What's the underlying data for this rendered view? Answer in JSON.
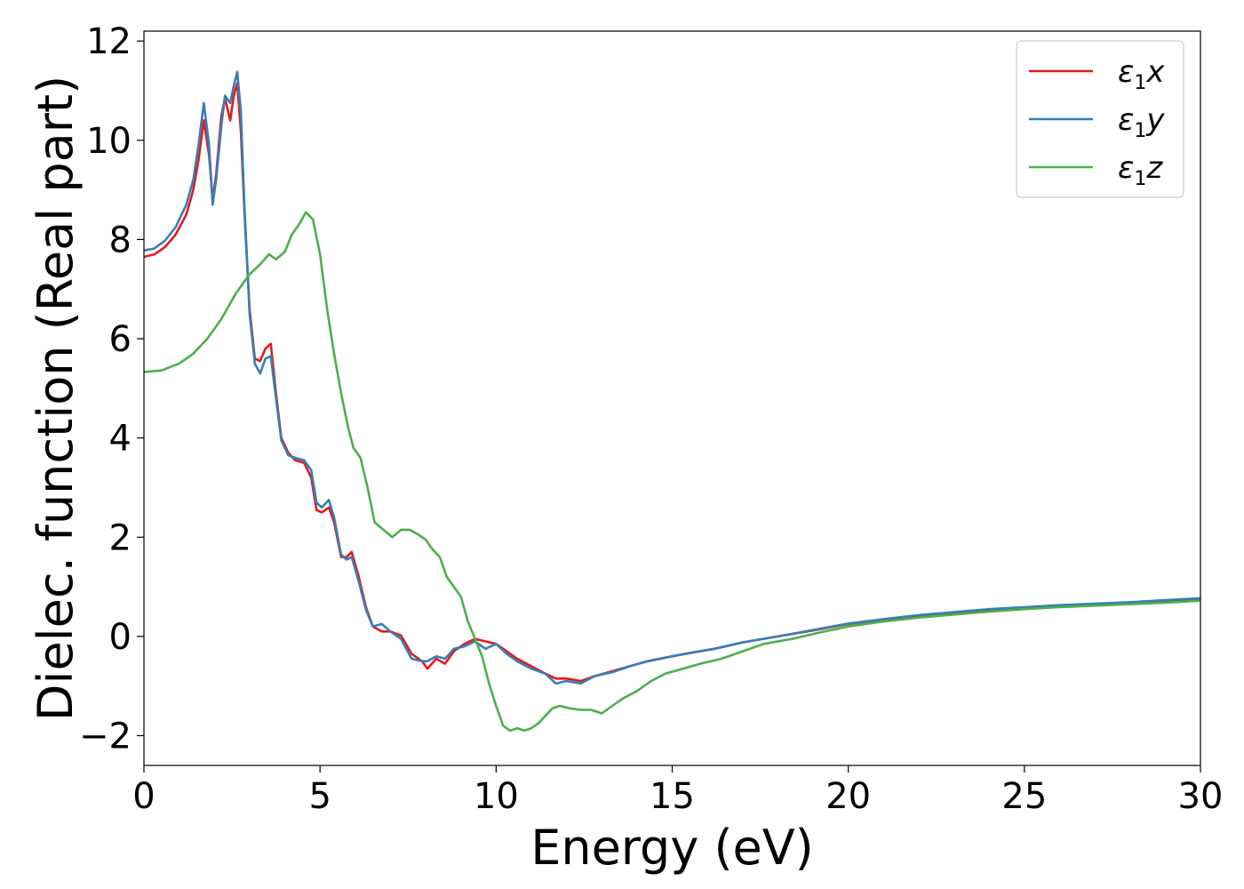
{
  "chart_data": {
    "type": "line",
    "xlabel": "Energy (eV)",
    "ylabel": "Dielec. function (Real part)",
    "xlim": [
      0,
      30
    ],
    "ylim": [
      -2.6,
      12.2
    ],
    "xticks": [
      0,
      5,
      10,
      15,
      20,
      25,
      30
    ],
    "yticks": [
      -2,
      0,
      2,
      4,
      6,
      8,
      10,
      12
    ],
    "ytick_labels": [
      "−2",
      "0",
      "2",
      "4",
      "6",
      "8",
      "10",
      "12"
    ],
    "grid": false,
    "legend_position": "top-right",
    "series": [
      {
        "name": "ε1x",
        "legend": {
          "base": "ε",
          "sub": "1",
          "tail": "x"
        },
        "color": "#e41a1c",
        "points": [
          [
            0,
            7.65
          ],
          [
            0.3,
            7.7
          ],
          [
            0.6,
            7.85
          ],
          [
            0.9,
            8.1
          ],
          [
            1.2,
            8.5
          ],
          [
            1.4,
            9.0
          ],
          [
            1.55,
            9.6
          ],
          [
            1.7,
            10.4
          ],
          [
            1.85,
            9.7
          ],
          [
            1.95,
            8.8
          ],
          [
            2.05,
            9.3
          ],
          [
            2.2,
            10.5
          ],
          [
            2.3,
            10.85
          ],
          [
            2.45,
            10.4
          ],
          [
            2.55,
            10.9
          ],
          [
            2.65,
            11.15
          ],
          [
            2.75,
            10.2
          ],
          [
            2.85,
            8.6
          ],
          [
            3.0,
            6.6
          ],
          [
            3.15,
            5.6
          ],
          [
            3.3,
            5.55
          ],
          [
            3.45,
            5.8
          ],
          [
            3.6,
            5.9
          ],
          [
            3.75,
            4.9
          ],
          [
            3.9,
            4.0
          ],
          [
            4.1,
            3.7
          ],
          [
            4.3,
            3.55
          ],
          [
            4.55,
            3.5
          ],
          [
            4.75,
            3.2
          ],
          [
            4.9,
            2.55
          ],
          [
            5.05,
            2.5
          ],
          [
            5.25,
            2.6
          ],
          [
            5.4,
            2.3
          ],
          [
            5.6,
            1.6
          ],
          [
            5.75,
            1.6
          ],
          [
            5.9,
            1.7
          ],
          [
            6.1,
            1.2
          ],
          [
            6.3,
            0.6
          ],
          [
            6.5,
            0.2
          ],
          [
            6.75,
            0.1
          ],
          [
            7.0,
            0.1
          ],
          [
            7.3,
            0.02
          ],
          [
            7.6,
            -0.35
          ],
          [
            7.9,
            -0.5
          ],
          [
            8.05,
            -0.65
          ],
          [
            8.3,
            -0.45
          ],
          [
            8.55,
            -0.55
          ],
          [
            8.8,
            -0.3
          ],
          [
            9.1,
            -0.15
          ],
          [
            9.4,
            -0.05
          ],
          [
            9.7,
            -0.1
          ],
          [
            10.0,
            -0.15
          ],
          [
            10.3,
            -0.3
          ],
          [
            10.6,
            -0.45
          ],
          [
            11.0,
            -0.6
          ],
          [
            11.4,
            -0.75
          ],
          [
            11.7,
            -0.85
          ],
          [
            12.0,
            -0.85
          ],
          [
            12.4,
            -0.9
          ],
          [
            12.8,
            -0.8
          ],
          [
            13.3,
            -0.7
          ],
          [
            13.8,
            -0.6
          ],
          [
            14.3,
            -0.5
          ],
          [
            15.0,
            -0.4
          ],
          [
            15.6,
            -0.32
          ],
          [
            16.2,
            -0.25
          ],
          [
            17.0,
            -0.12
          ],
          [
            18.0,
            0.0
          ],
          [
            19.0,
            0.12
          ],
          [
            20.0,
            0.25
          ],
          [
            21.0,
            0.34
          ],
          [
            22.0,
            0.42
          ],
          [
            23.0,
            0.48
          ],
          [
            24.0,
            0.54
          ],
          [
            25.0,
            0.58
          ],
          [
            26.0,
            0.62
          ],
          [
            27.0,
            0.65
          ],
          [
            28.0,
            0.68
          ],
          [
            29.0,
            0.72
          ],
          [
            30.0,
            0.75
          ]
        ]
      },
      {
        "name": "ε1y",
        "legend": {
          "base": "ε",
          "sub": "1",
          "tail": "y"
        },
        "color": "#377eb8",
        "points": [
          [
            0,
            7.78
          ],
          [
            0.3,
            7.82
          ],
          [
            0.6,
            7.98
          ],
          [
            0.9,
            8.25
          ],
          [
            1.2,
            8.7
          ],
          [
            1.4,
            9.2
          ],
          [
            1.55,
            9.9
          ],
          [
            1.7,
            10.75
          ],
          [
            1.85,
            9.9
          ],
          [
            1.95,
            8.7
          ],
          [
            2.05,
            9.2
          ],
          [
            2.2,
            10.3
          ],
          [
            2.3,
            10.9
          ],
          [
            2.45,
            10.75
          ],
          [
            2.55,
            11.1
          ],
          [
            2.65,
            11.38
          ],
          [
            2.75,
            10.6
          ],
          [
            2.85,
            8.7
          ],
          [
            3.0,
            6.5
          ],
          [
            3.15,
            5.5
          ],
          [
            3.3,
            5.3
          ],
          [
            3.45,
            5.6
          ],
          [
            3.6,
            5.65
          ],
          [
            3.75,
            4.8
          ],
          [
            3.9,
            3.95
          ],
          [
            4.1,
            3.65
          ],
          [
            4.3,
            3.6
          ],
          [
            4.55,
            3.55
          ],
          [
            4.75,
            3.35
          ],
          [
            4.9,
            2.7
          ],
          [
            5.05,
            2.6
          ],
          [
            5.25,
            2.75
          ],
          [
            5.4,
            2.4
          ],
          [
            5.6,
            1.65
          ],
          [
            5.75,
            1.55
          ],
          [
            5.9,
            1.6
          ],
          [
            6.1,
            1.1
          ],
          [
            6.3,
            0.55
          ],
          [
            6.5,
            0.2
          ],
          [
            6.75,
            0.25
          ],
          [
            7.0,
            0.1
          ],
          [
            7.3,
            -0.05
          ],
          [
            7.6,
            -0.45
          ],
          [
            7.9,
            -0.5
          ],
          [
            8.05,
            -0.5
          ],
          [
            8.3,
            -0.4
          ],
          [
            8.55,
            -0.45
          ],
          [
            8.8,
            -0.25
          ],
          [
            9.1,
            -0.2
          ],
          [
            9.4,
            -0.1
          ],
          [
            9.7,
            -0.25
          ],
          [
            10.0,
            -0.15
          ],
          [
            10.3,
            -0.35
          ],
          [
            10.6,
            -0.5
          ],
          [
            11.0,
            -0.65
          ],
          [
            11.4,
            -0.75
          ],
          [
            11.7,
            -0.95
          ],
          [
            12.0,
            -0.9
          ],
          [
            12.4,
            -0.95
          ],
          [
            12.8,
            -0.8
          ],
          [
            13.3,
            -0.72
          ],
          [
            13.8,
            -0.6
          ],
          [
            14.3,
            -0.5
          ],
          [
            15.0,
            -0.4
          ],
          [
            15.6,
            -0.32
          ],
          [
            16.2,
            -0.25
          ],
          [
            17.0,
            -0.12
          ],
          [
            18.0,
            0.0
          ],
          [
            19.0,
            0.13
          ],
          [
            20.0,
            0.26
          ],
          [
            21.0,
            0.35
          ],
          [
            22.0,
            0.43
          ],
          [
            23.0,
            0.49
          ],
          [
            24.0,
            0.55
          ],
          [
            25.0,
            0.59
          ],
          [
            26.0,
            0.63
          ],
          [
            27.0,
            0.66
          ],
          [
            28.0,
            0.69
          ],
          [
            29.0,
            0.73
          ],
          [
            30.0,
            0.77
          ]
        ]
      },
      {
        "name": "ε1z",
        "legend": {
          "base": "ε",
          "sub": "1",
          "tail": "z"
        },
        "color": "#4daf4a",
        "points": [
          [
            0,
            5.33
          ],
          [
            0.5,
            5.36
          ],
          [
            1.0,
            5.5
          ],
          [
            1.4,
            5.7
          ],
          [
            1.8,
            6.0
          ],
          [
            2.2,
            6.4
          ],
          [
            2.6,
            6.9
          ],
          [
            3.0,
            7.3
          ],
          [
            3.3,
            7.5
          ],
          [
            3.55,
            7.7
          ],
          [
            3.75,
            7.6
          ],
          [
            4.0,
            7.75
          ],
          [
            4.2,
            8.1
          ],
          [
            4.4,
            8.3
          ],
          [
            4.6,
            8.55
          ],
          [
            4.8,
            8.4
          ],
          [
            5.0,
            7.7
          ],
          [
            5.2,
            6.6
          ],
          [
            5.4,
            5.7
          ],
          [
            5.6,
            4.9
          ],
          [
            5.8,
            4.2
          ],
          [
            5.95,
            3.8
          ],
          [
            6.15,
            3.6
          ],
          [
            6.35,
            3.0
          ],
          [
            6.55,
            2.3
          ],
          [
            6.8,
            2.15
          ],
          [
            7.05,
            2.0
          ],
          [
            7.3,
            2.15
          ],
          [
            7.55,
            2.15
          ],
          [
            7.8,
            2.05
          ],
          [
            8.0,
            1.95
          ],
          [
            8.2,
            1.75
          ],
          [
            8.4,
            1.6
          ],
          [
            8.6,
            1.2
          ],
          [
            8.8,
            1.0
          ],
          [
            9.0,
            0.8
          ],
          [
            9.2,
            0.3
          ],
          [
            9.4,
            -0.05
          ],
          [
            9.6,
            -0.4
          ],
          [
            9.8,
            -0.95
          ],
          [
            10.0,
            -1.4
          ],
          [
            10.2,
            -1.8
          ],
          [
            10.4,
            -1.9
          ],
          [
            10.6,
            -1.85
          ],
          [
            10.8,
            -1.9
          ],
          [
            11.0,
            -1.85
          ],
          [
            11.2,
            -1.75
          ],
          [
            11.4,
            -1.6
          ],
          [
            11.6,
            -1.45
          ],
          [
            11.8,
            -1.4
          ],
          [
            12.1,
            -1.45
          ],
          [
            12.4,
            -1.48
          ],
          [
            12.7,
            -1.48
          ],
          [
            13.0,
            -1.55
          ],
          [
            13.3,
            -1.4
          ],
          [
            13.6,
            -1.25
          ],
          [
            14.0,
            -1.1
          ],
          [
            14.4,
            -0.9
          ],
          [
            14.8,
            -0.75
          ],
          [
            15.3,
            -0.65
          ],
          [
            15.8,
            -0.55
          ],
          [
            16.4,
            -0.45
          ],
          [
            17.0,
            -0.3
          ],
          [
            17.6,
            -0.15
          ],
          [
            18.4,
            -0.05
          ],
          [
            19.2,
            0.08
          ],
          [
            20.0,
            0.2
          ],
          [
            21.0,
            0.3
          ],
          [
            22.0,
            0.38
          ],
          [
            23.0,
            0.44
          ],
          [
            24.0,
            0.5
          ],
          [
            25.0,
            0.55
          ],
          [
            26.0,
            0.59
          ],
          [
            27.0,
            0.62
          ],
          [
            28.0,
            0.65
          ],
          [
            29.0,
            0.68
          ],
          [
            30.0,
            0.72
          ]
        ]
      }
    ]
  }
}
